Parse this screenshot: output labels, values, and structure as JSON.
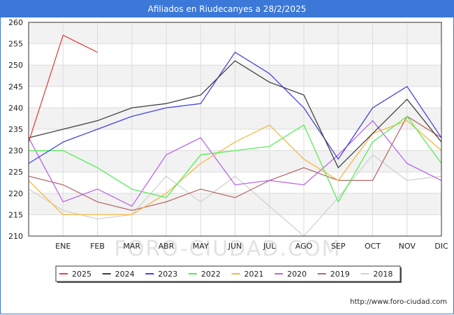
{
  "chart_data": {
    "type": "line",
    "title": "Afiliados en Riudecanyes a 28/2/2025",
    "categories": [
      "",
      "ENE",
      "FEB",
      "MAR",
      "ABR",
      "MAY",
      "JUN",
      "JUL",
      "AGO",
      "SEP",
      "OCT",
      "NOV",
      "DIC"
    ],
    "ylim": [
      210,
      260
    ],
    "yticks": [
      210,
      215,
      220,
      225,
      230,
      235,
      240,
      245,
      250,
      255,
      260
    ],
    "grid": true,
    "legend_position": "bottom",
    "series": [
      {
        "name": "2025",
        "color": "#e34444",
        "values": [
          232,
          257,
          253,
          null,
          null,
          null,
          null,
          null,
          null,
          null,
          null,
          null,
          null
        ]
      },
      {
        "name": "2024",
        "color": "#404040",
        "values": [
          233,
          235,
          237,
          240,
          241,
          243,
          251,
          246,
          243,
          226,
          234,
          242,
          232
        ]
      },
      {
        "name": "2023",
        "color": "#4444e0",
        "values": [
          227,
          232,
          235,
          238,
          240,
          241,
          253,
          248,
          240,
          228,
          240,
          245,
          233
        ]
      },
      {
        "name": "2022",
        "color": "#55ee55",
        "values": [
          230,
          230,
          226,
          221,
          219,
          229,
          230,
          231,
          236,
          218,
          232,
          238,
          227
        ]
      },
      {
        "name": "2021",
        "color": "#f5b840",
        "values": [
          223,
          215,
          215,
          215,
          220,
          227,
          232,
          236,
          228,
          223,
          234,
          237,
          230
        ]
      },
      {
        "name": "2020",
        "color": "#b866e8",
        "values": [
          233,
          218,
          221,
          217,
          229,
          233,
          222,
          223,
          222,
          229,
          237,
          227,
          223
        ]
      },
      {
        "name": "2019",
        "color": "#b86b6b",
        "values": [
          224,
          222,
          218,
          216,
          218,
          221,
          219,
          223,
          226,
          223,
          223,
          238,
          233
        ]
      },
      {
        "name": "2018",
        "color": "#d2d2d2",
        "values": [
          221,
          216,
          214,
          215,
          224,
          218,
          224,
          217,
          210,
          219,
          229,
          223,
          224
        ]
      }
    ]
  },
  "watermark": "FORO-CIUDAD.COM",
  "source": "http://www.foro-ciudad.com"
}
